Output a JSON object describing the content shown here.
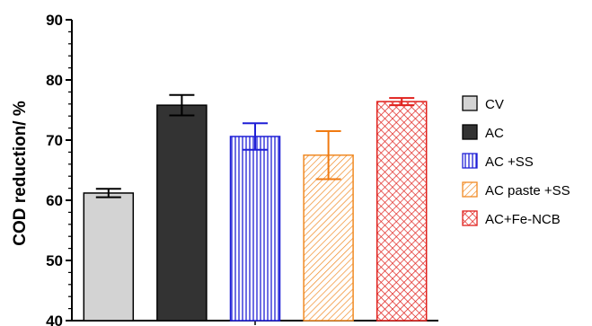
{
  "chart_data": {
    "type": "bar",
    "title": "",
    "xlabel": "",
    "ylabel": "COD reduction/ %",
    "ylim": [
      40,
      90
    ],
    "yticks": [
      40,
      50,
      60,
      70,
      80,
      90
    ],
    "y_minor_step": 2,
    "grid": false,
    "legend_position": "right",
    "categories": [
      "CV",
      "AC",
      "AC +SS",
      "AC paste +SS",
      "AC+Fe-NCB"
    ],
    "values": [
      61.2,
      75.8,
      70.6,
      67.5,
      76.4
    ],
    "errors": [
      0.7,
      1.7,
      2.2,
      4.0,
      0.6
    ],
    "styles": [
      {
        "fill": "#d3d3d3",
        "stroke": "#000000",
        "pattern": "solid",
        "error_color": "#000000"
      },
      {
        "fill": "#333333",
        "stroke": "#000000",
        "pattern": "solid",
        "error_color": "#000000"
      },
      {
        "fill": "#ffffff",
        "stroke": "#1f1fd6",
        "pattern": "vertical-lines",
        "error_color": "#1f1fd6"
      },
      {
        "fill": "#ffffff",
        "stroke": "#f08a24",
        "pattern": "diagonal-lines",
        "error_color": "#f07a10"
      },
      {
        "fill": "#ffffff",
        "stroke": "#e0201c",
        "pattern": "crosshatch",
        "error_color": "#e0201c"
      }
    ]
  }
}
